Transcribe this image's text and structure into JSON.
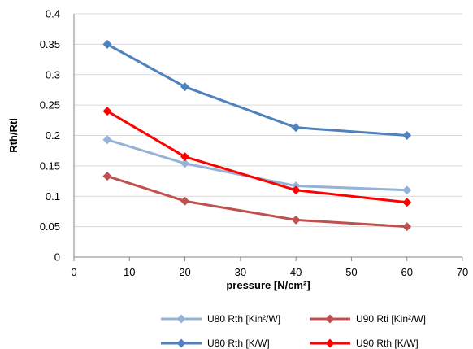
{
  "chart_data": {
    "type": "line",
    "title": "",
    "xlabel": "pressure [N/cm²]",
    "ylabel": "Rth/Rti",
    "xlim": [
      0,
      70
    ],
    "ylim": [
      0,
      0.4
    ],
    "x_ticks": [
      0,
      10,
      20,
      30,
      40,
      50,
      60,
      70
    ],
    "y_ticks": [
      0,
      0.05,
      0.1,
      0.15,
      0.2,
      0.25,
      0.3,
      0.35,
      0.4
    ],
    "grid": "horizontal",
    "legend_position": "bottom",
    "x": [
      6,
      20,
      40,
      60
    ],
    "series": [
      {
        "name": "U80 Rth [Kin²/W]",
        "color": "#95B3D7",
        "marker": "diamond",
        "values": [
          0.193,
          0.154,
          0.117,
          0.11
        ]
      },
      {
        "name": "U90 Rti [Kin²/W]",
        "color": "#C0504D",
        "marker": "diamond",
        "values": [
          0.133,
          0.092,
          0.061,
          0.05
        ]
      },
      {
        "name": "U80 Rth [K/W]",
        "color": "#4F81BD",
        "marker": "diamond",
        "values": [
          0.35,
          0.28,
          0.213,
          0.2
        ]
      },
      {
        "name": "U90 Rth [K/W]",
        "color": "#FF0000",
        "marker": "diamond",
        "values": [
          0.24,
          0.165,
          0.11,
          0.09
        ]
      }
    ]
  }
}
